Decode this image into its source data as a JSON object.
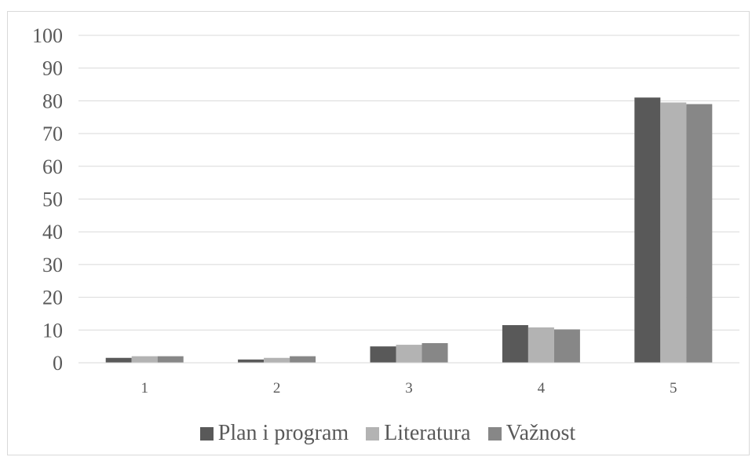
{
  "chart_data": {
    "type": "bar",
    "categories": [
      "1",
      "2",
      "3",
      "4",
      "5"
    ],
    "series": [
      {
        "name": "Plan i program",
        "color": "#595959",
        "values": [
          1.5,
          1.0,
          5.0,
          11.5,
          81.0
        ]
      },
      {
        "name": "Literatura",
        "color": "#b3b3b3",
        "values": [
          2.0,
          1.5,
          5.5,
          10.8,
          79.5
        ]
      },
      {
        "name": "Važnost",
        "color": "#878787",
        "values": [
          2.0,
          2.0,
          6.0,
          10.2,
          79.0
        ]
      }
    ],
    "ylim": [
      0,
      100
    ],
    "yticks": [
      "0",
      "10",
      "20",
      "30",
      "40",
      "50",
      "60",
      "70",
      "80",
      "90",
      "100"
    ],
    "grid": true,
    "legend_position": "bottom"
  }
}
